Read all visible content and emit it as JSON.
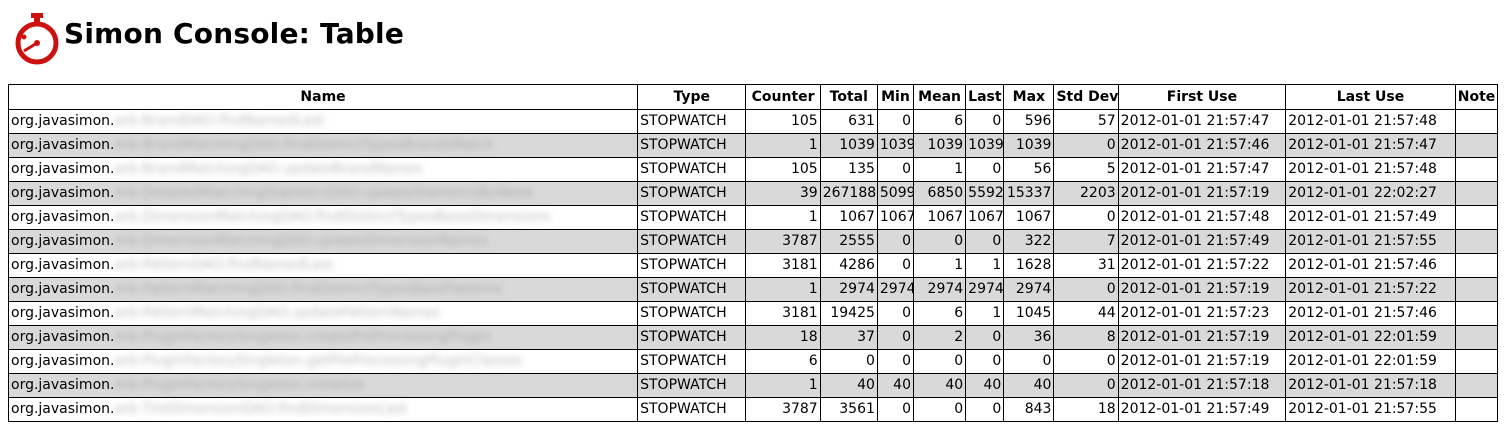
{
  "page": {
    "title": "Simon Console: Table"
  },
  "colors": {
    "logo_red": "#cc1111",
    "row_alt": "#d9d9d9"
  },
  "icons": {
    "logo": "stopwatch-logo-icon"
  },
  "table": {
    "columns": [
      "Name",
      "Type",
      "Counter",
      "Total",
      "Min",
      "Mean",
      "Last",
      "Max",
      "Std Dev",
      "First Use",
      "Last Use",
      "Note"
    ],
    "rows": [
      {
        "name_prefix": "org.javasimon.",
        "name_suffix": "orb.BrandDAO.findNamedLast",
        "type": "STOPWATCH",
        "counter": "105",
        "total": "631",
        "min": "0",
        "mean": "6",
        "last": "0",
        "max": "596",
        "std_dev": "57",
        "first_use": "2012-01-01 21:57:47",
        "last_use": "2012-01-01 21:57:48",
        "note": ""
      },
      {
        "name_prefix": "org.javasimon.",
        "name_suffix": "orb.BrandMatchingDAO.findDistinctTypesBrandsMatch",
        "type": "STOPWATCH",
        "counter": "1",
        "total": "1039",
        "min": "1039",
        "mean": "1039",
        "last": "1039",
        "max": "1039",
        "std_dev": "0",
        "first_use": "2012-01-01 21:57:46",
        "last_use": "2012-01-01 21:57:47",
        "note": ""
      },
      {
        "name_prefix": "org.javasimon.",
        "name_suffix": "orb.BrandMatchingDAO.updateBrandNames",
        "type": "STOPWATCH",
        "counter": "105",
        "total": "135",
        "min": "0",
        "mean": "1",
        "last": "0",
        "max": "56",
        "std_dev": "5",
        "first_use": "2012-01-01 21:57:47",
        "last_use": "2012-01-01 21:57:48",
        "note": ""
      },
      {
        "name_prefix": "org.javasimon.",
        "name_suffix": "orb.DetailedMatchingStatisticsDAO.updateStatisticsByWeek",
        "type": "STOPWATCH",
        "counter": "39",
        "total": "267188",
        "min": "5099",
        "mean": "6850",
        "last": "5592",
        "max": "15337",
        "std_dev": "2203",
        "first_use": "2012-01-01 21:57:19",
        "last_use": "2012-01-01 22:02:27",
        "note": ""
      },
      {
        "name_prefix": "org.javasimon.",
        "name_suffix": "orb.DimensionMatchingDAO.findDistinctTypesBaseDimensions",
        "type": "STOPWATCH",
        "counter": "1",
        "total": "1067",
        "min": "1067",
        "mean": "1067",
        "last": "1067",
        "max": "1067",
        "std_dev": "0",
        "first_use": "2012-01-01 21:57:48",
        "last_use": "2012-01-01 21:57:49",
        "note": ""
      },
      {
        "name_prefix": "org.javasimon.",
        "name_suffix": "orb.DimensionMatchingDAO.updateDimensionNames",
        "type": "STOPWATCH",
        "counter": "3787",
        "total": "2555",
        "min": "0",
        "mean": "0",
        "last": "0",
        "max": "322",
        "std_dev": "7",
        "first_use": "2012-01-01 21:57:49",
        "last_use": "2012-01-01 21:57:55",
        "note": ""
      },
      {
        "name_prefix": "org.javasimon.",
        "name_suffix": "orb.PatternDAO.findNamedLast",
        "type": "STOPWATCH",
        "counter": "3181",
        "total": "4286",
        "min": "0",
        "mean": "1",
        "last": "1",
        "max": "1628",
        "std_dev": "31",
        "first_use": "2012-01-01 21:57:22",
        "last_use": "2012-01-01 21:57:46",
        "note": ""
      },
      {
        "name_prefix": "org.javasimon.",
        "name_suffix": "orb.PatternMatchingDAO.findDistinctTypesBasePatterns",
        "type": "STOPWATCH",
        "counter": "1",
        "total": "2974",
        "min": "2974",
        "mean": "2974",
        "last": "2974",
        "max": "2974",
        "std_dev": "0",
        "first_use": "2012-01-01 21:57:19",
        "last_use": "2012-01-01 21:57:22",
        "note": ""
      },
      {
        "name_prefix": "org.javasimon.",
        "name_suffix": "orb.PatternMatchingDAO.updatePatternNames",
        "type": "STOPWATCH",
        "counter": "3181",
        "total": "19425",
        "min": "0",
        "mean": "6",
        "last": "1",
        "max": "1045",
        "std_dev": "44",
        "first_use": "2012-01-01 21:57:23",
        "last_use": "2012-01-01 21:57:46",
        "note": ""
      },
      {
        "name_prefix": "org.javasimon.",
        "name_suffix": "orb.PluginFactorySingleton.createPreProcessingPlugin",
        "type": "STOPWATCH",
        "counter": "18",
        "total": "37",
        "min": "0",
        "mean": "2",
        "last": "0",
        "max": "36",
        "std_dev": "8",
        "first_use": "2012-01-01 21:57:19",
        "last_use": "2012-01-01 22:01:59",
        "note": ""
      },
      {
        "name_prefix": "org.javasimon.",
        "name_suffix": "orb.PluginFactorySingleton.getPreProcessingPluginClasses",
        "type": "STOPWATCH",
        "counter": "6",
        "total": "0",
        "min": "0",
        "mean": "0",
        "last": "0",
        "max": "0",
        "std_dev": "0",
        "first_use": "2012-01-01 21:57:19",
        "last_use": "2012-01-01 22:01:59",
        "note": ""
      },
      {
        "name_prefix": "org.javasimon.",
        "name_suffix": "orb.PluginFactorySingleton.initialize",
        "type": "STOPWATCH",
        "counter": "1",
        "total": "40",
        "min": "40",
        "mean": "40",
        "last": "40",
        "max": "40",
        "std_dev": "0",
        "first_use": "2012-01-01 21:57:18",
        "last_use": "2012-01-01 21:57:18",
        "note": ""
      },
      {
        "name_prefix": "org.javasimon.",
        "name_suffix": "orb.TireDimensionDAO.findDimensionLast",
        "type": "STOPWATCH",
        "counter": "3787",
        "total": "3561",
        "min": "0",
        "mean": "0",
        "last": "0",
        "max": "843",
        "std_dev": "18",
        "first_use": "2012-01-01 21:57:49",
        "last_use": "2012-01-01 21:57:55",
        "note": ""
      }
    ]
  }
}
